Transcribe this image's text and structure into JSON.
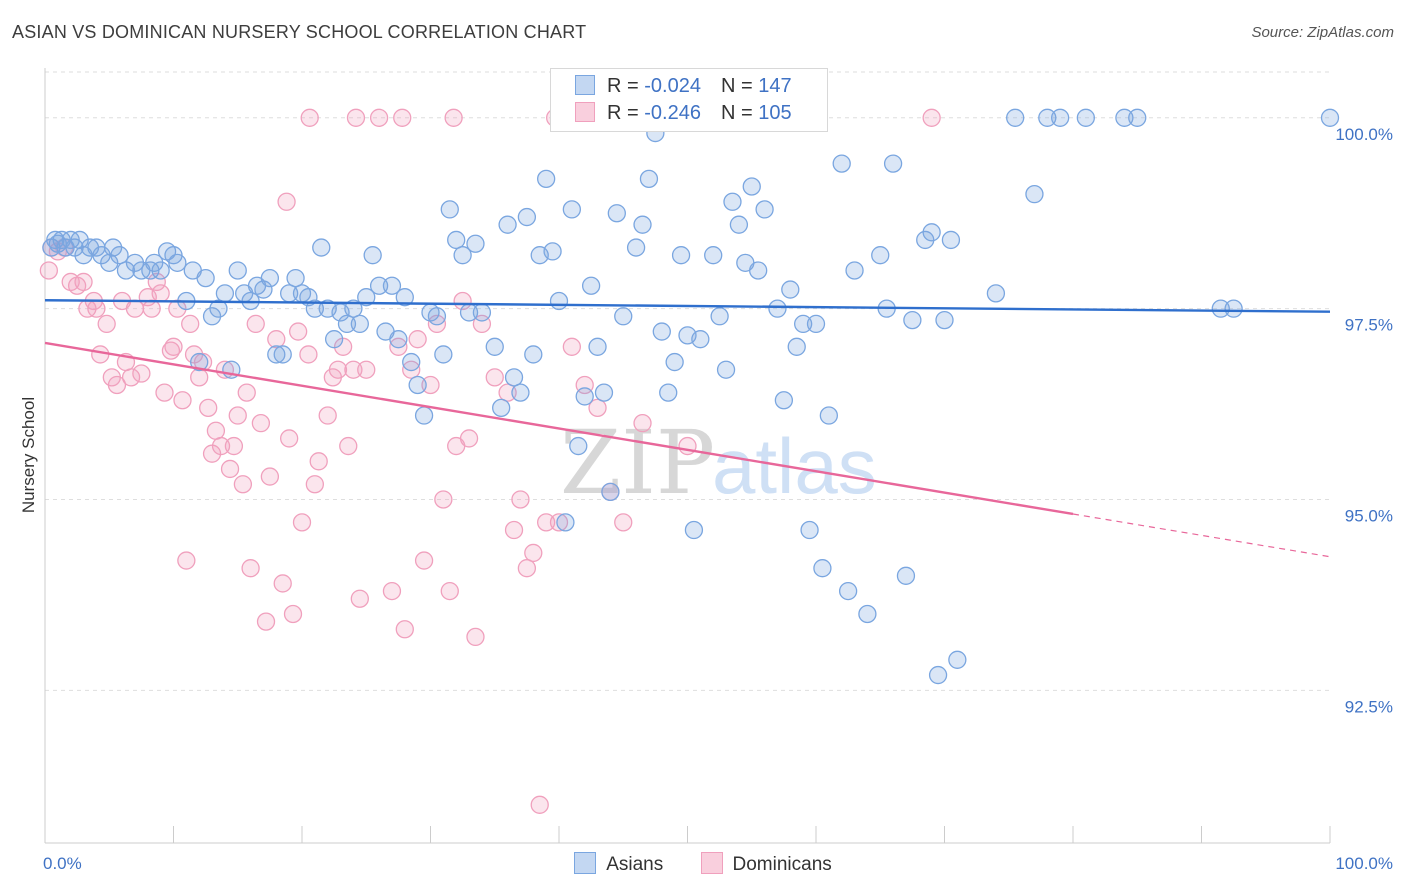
{
  "title": "ASIAN VS DOMINICAN NURSERY SCHOOL CORRELATION CHART",
  "source": "Source: ZipAtlas.com",
  "watermark": {
    "zip": "ZIP",
    "atlas": "atlas"
  },
  "legend": {
    "asian": {
      "r_label": "R = ",
      "r_value": "-0.024",
      "n_label": "N = ",
      "n_value": "147"
    },
    "dominican": {
      "r_label": "R = ",
      "r_value": "-0.246",
      "n_label": "N = ",
      "n_value": "105"
    }
  },
  "bottom_legend": {
    "asians": "Asians",
    "dominicans": "Dominicans"
  },
  "chart_data": {
    "type": "scatter",
    "title": "ASIAN VS DOMINICAN NURSERY SCHOOL CORRELATION CHART",
    "ylabel": "Nursery School",
    "xlabel": "",
    "xlim": [
      0,
      100
    ],
    "ylim": [
      90.5,
      100.6
    ],
    "x_tick_labels": {
      "left": "0.0%",
      "right": "100.0%"
    },
    "y_ticks": [
      {
        "value": 100.0,
        "label": "100.0%"
      },
      {
        "value": 97.5,
        "label": "97.5%"
      },
      {
        "value": 95.0,
        "label": "95.0%"
      },
      {
        "value": 92.5,
        "label": "92.5%"
      }
    ],
    "grid": true,
    "colors": {
      "asian": "#7aa6e0",
      "asian_line": "#2f6fcd",
      "dominican": "#f0a0bd",
      "dominican_line": "#e8679a"
    },
    "series": [
      {
        "name": "Asians",
        "trend": {
          "x0": 0,
          "y0": 97.61,
          "x1": 100,
          "y1": 97.46,
          "solid_until": 100
        },
        "points": [
          [
            0.5,
            98.3
          ],
          [
            0.8,
            98.4
          ],
          [
            1.0,
            98.35
          ],
          [
            1.3,
            98.4
          ],
          [
            1.6,
            98.3
          ],
          [
            2.0,
            98.4
          ],
          [
            2.3,
            98.3
          ],
          [
            2.7,
            98.4
          ],
          [
            3.0,
            98.2
          ],
          [
            3.5,
            98.3
          ],
          [
            4.0,
            98.3
          ],
          [
            4.4,
            98.2
          ],
          [
            5.0,
            98.1
          ],
          [
            5.3,
            98.3
          ],
          [
            5.8,
            98.2
          ],
          [
            6.3,
            98.0
          ],
          [
            7.0,
            98.1
          ],
          [
            7.5,
            98.0
          ],
          [
            8.2,
            98.0
          ],
          [
            8.5,
            98.1
          ],
          [
            9.0,
            98.0
          ],
          [
            9.5,
            98.25
          ],
          [
            10.0,
            98.2
          ],
          [
            10.3,
            98.1
          ],
          [
            11.0,
            97.6
          ],
          [
            11.5,
            98.0
          ],
          [
            12.0,
            96.8
          ],
          [
            12.5,
            97.9
          ],
          [
            13.0,
            97.4
          ],
          [
            13.5,
            97.5
          ],
          [
            14.0,
            97.7
          ],
          [
            14.5,
            96.7
          ],
          [
            15.0,
            98.0
          ],
          [
            15.5,
            97.7
          ],
          [
            16.0,
            97.6
          ],
          [
            16.5,
            97.8
          ],
          [
            17.0,
            97.75
          ],
          [
            17.5,
            97.9
          ],
          [
            18.0,
            96.9
          ],
          [
            18.5,
            96.9
          ],
          [
            19.0,
            97.7
          ],
          [
            19.5,
            97.9
          ],
          [
            20.0,
            97.7
          ],
          [
            20.5,
            97.65
          ],
          [
            21.0,
            97.5
          ],
          [
            21.5,
            98.3
          ],
          [
            22.0,
            97.5
          ],
          [
            22.5,
            97.1
          ],
          [
            23.0,
            97.45
          ],
          [
            23.5,
            97.3
          ],
          [
            24.0,
            97.5
          ],
          [
            24.5,
            97.3
          ],
          [
            25.0,
            97.65
          ],
          [
            25.5,
            98.2
          ],
          [
            26.0,
            97.8
          ],
          [
            26.5,
            97.2
          ],
          [
            27.0,
            97.8
          ],
          [
            27.5,
            97.1
          ],
          [
            28.0,
            97.65
          ],
          [
            28.5,
            96.8
          ],
          [
            29.0,
            96.5
          ],
          [
            29.5,
            96.1
          ],
          [
            30.0,
            97.45
          ],
          [
            30.5,
            97.4
          ],
          [
            31.0,
            96.9
          ],
          [
            31.5,
            98.8
          ],
          [
            32.0,
            98.4
          ],
          [
            32.5,
            98.2
          ],
          [
            33.0,
            97.45
          ],
          [
            33.5,
            98.35
          ],
          [
            34.0,
            97.45
          ],
          [
            35.0,
            97.0
          ],
          [
            35.5,
            96.2
          ],
          [
            36.0,
            98.6
          ],
          [
            36.5,
            96.6
          ],
          [
            37.0,
            96.4
          ],
          [
            37.5,
            98.7
          ],
          [
            38.0,
            96.9
          ],
          [
            38.5,
            98.2
          ],
          [
            39.0,
            99.2
          ],
          [
            39.5,
            98.25
          ],
          [
            40.0,
            97.6
          ],
          [
            40.5,
            94.7
          ],
          [
            41.0,
            98.8
          ],
          [
            41.5,
            95.7
          ],
          [
            42.0,
            96.35
          ],
          [
            42.5,
            97.8
          ],
          [
            43.0,
            97.0
          ],
          [
            43.5,
            96.4
          ],
          [
            44.0,
            95.1
          ],
          [
            44.5,
            98.75
          ],
          [
            45.0,
            97.4
          ],
          [
            46.0,
            98.3
          ],
          [
            46.5,
            98.6
          ],
          [
            47.0,
            99.2
          ],
          [
            47.5,
            99.8
          ],
          [
            48.0,
            97.2
          ],
          [
            48.5,
            96.4
          ],
          [
            49.0,
            96.8
          ],
          [
            49.5,
            98.2
          ],
          [
            50.0,
            97.15
          ],
          [
            50.5,
            94.6
          ],
          [
            51.0,
            97.1
          ],
          [
            52.0,
            98.2
          ],
          [
            52.5,
            97.4
          ],
          [
            53.0,
            96.7
          ],
          [
            53.5,
            98.9
          ],
          [
            54.0,
            98.6
          ],
          [
            54.5,
            98.1
          ],
          [
            55.0,
            99.1
          ],
          [
            55.5,
            98.0
          ],
          [
            56.0,
            98.8
          ],
          [
            57.0,
            97.5
          ],
          [
            57.5,
            96.3
          ],
          [
            58.0,
            97.75
          ],
          [
            58.5,
            97.0
          ],
          [
            59.0,
            97.3
          ],
          [
            59.5,
            94.6
          ],
          [
            60.0,
            97.3
          ],
          [
            60.5,
            94.1
          ],
          [
            61.0,
            96.1
          ],
          [
            62.0,
            99.4
          ],
          [
            62.5,
            93.8
          ],
          [
            63.0,
            98.0
          ],
          [
            64.0,
            93.5
          ],
          [
            65.0,
            98.2
          ],
          [
            65.5,
            97.5
          ],
          [
            66.0,
            99.4
          ],
          [
            67.0,
            94.0
          ],
          [
            67.5,
            97.35
          ],
          [
            68.5,
            98.4
          ],
          [
            69.0,
            98.5
          ],
          [
            69.5,
            92.7
          ],
          [
            70.0,
            97.35
          ],
          [
            70.5,
            98.4
          ],
          [
            71.0,
            92.9
          ],
          [
            74.0,
            97.7
          ],
          [
            77.0,
            99.0
          ],
          [
            75.5,
            100.0
          ],
          [
            78.0,
            100.0
          ],
          [
            79.0,
            100.0
          ],
          [
            81.0,
            100.0
          ],
          [
            84.0,
            100.0
          ],
          [
            85.0,
            100.0
          ],
          [
            100.0,
            100.0
          ],
          [
            91.5,
            97.5
          ],
          [
            92.5,
            97.5
          ]
        ]
      },
      {
        "name": "Dominicans",
        "trend": {
          "x0": 0,
          "y0": 97.05,
          "x1": 100,
          "y1": 94.25,
          "solid_until": 80
        },
        "points": [
          [
            0.3,
            98.0
          ],
          [
            0.5,
            98.3
          ],
          [
            1.0,
            98.25
          ],
          [
            1.5,
            98.3
          ],
          [
            2.0,
            97.85
          ],
          [
            2.5,
            97.8
          ],
          [
            3.0,
            97.85
          ],
          [
            3.3,
            97.5
          ],
          [
            3.8,
            97.6
          ],
          [
            4.0,
            97.5
          ],
          [
            4.3,
            96.9
          ],
          [
            4.8,
            97.3
          ],
          [
            5.2,
            96.6
          ],
          [
            5.6,
            96.5
          ],
          [
            6.0,
            97.6
          ],
          [
            6.3,
            96.8
          ],
          [
            6.7,
            96.6
          ],
          [
            7.0,
            97.5
          ],
          [
            7.5,
            96.65
          ],
          [
            8.0,
            97.65
          ],
          [
            8.3,
            97.5
          ],
          [
            8.7,
            97.85
          ],
          [
            9.0,
            97.7
          ],
          [
            9.3,
            96.4
          ],
          [
            9.8,
            96.95
          ],
          [
            10.0,
            97.0
          ],
          [
            10.3,
            97.5
          ],
          [
            10.7,
            96.3
          ],
          [
            11.0,
            94.2
          ],
          [
            11.3,
            97.3
          ],
          [
            11.6,
            96.9
          ],
          [
            12.0,
            96.6
          ],
          [
            12.3,
            96.8
          ],
          [
            12.7,
            96.2
          ],
          [
            13.0,
            95.6
          ],
          [
            13.3,
            95.9
          ],
          [
            13.7,
            95.7
          ],
          [
            14.0,
            96.7
          ],
          [
            14.4,
            95.4
          ],
          [
            14.7,
            95.7
          ],
          [
            15.0,
            96.1
          ],
          [
            15.4,
            95.2
          ],
          [
            15.7,
            96.4
          ],
          [
            16.0,
            94.1
          ],
          [
            16.4,
            97.3
          ],
          [
            16.8,
            96.0
          ],
          [
            17.2,
            93.4
          ],
          [
            17.5,
            95.3
          ],
          [
            18.0,
            97.1
          ],
          [
            18.5,
            93.9
          ],
          [
            18.8,
            98.9
          ],
          [
            19.0,
            95.8
          ],
          [
            19.3,
            93.5
          ],
          [
            19.7,
            97.2
          ],
          [
            20.0,
            94.7
          ],
          [
            20.5,
            96.9
          ],
          [
            21.0,
            95.2
          ],
          [
            21.3,
            95.5
          ],
          [
            22.0,
            96.1
          ],
          [
            22.4,
            96.6
          ],
          [
            22.8,
            96.7
          ],
          [
            23.2,
            97.0
          ],
          [
            23.6,
            95.7
          ],
          [
            24.0,
            96.7
          ],
          [
            24.5,
            93.7
          ],
          [
            25.0,
            96.7
          ],
          [
            26.0,
            100.0
          ],
          [
            27.0,
            93.8
          ],
          [
            27.5,
            97.0
          ],
          [
            28.0,
            93.3
          ],
          [
            28.5,
            96.7
          ],
          [
            29.0,
            97.1
          ],
          [
            29.5,
            94.2
          ],
          [
            30.0,
            96.5
          ],
          [
            30.5,
            97.3
          ],
          [
            31.0,
            95.0
          ],
          [
            31.5,
            93.8
          ],
          [
            32.0,
            95.7
          ],
          [
            32.5,
            97.6
          ],
          [
            33.0,
            95.8
          ],
          [
            33.5,
            93.2
          ],
          [
            34.0,
            97.3
          ],
          [
            35.0,
            96.6
          ],
          [
            36.0,
            96.4
          ],
          [
            36.5,
            94.6
          ],
          [
            37.0,
            95.0
          ],
          [
            37.5,
            94.1
          ],
          [
            38.0,
            94.3
          ],
          [
            38.5,
            91.0
          ],
          [
            39.0,
            94.7
          ],
          [
            40.0,
            94.7
          ],
          [
            41.0,
            97.0
          ],
          [
            42.0,
            96.5
          ],
          [
            43.0,
            96.2
          ],
          [
            44.0,
            95.1
          ],
          [
            45.0,
            94.7
          ],
          [
            46.5,
            96.0
          ],
          [
            47.5,
            100.0
          ],
          [
            50.0,
            95.7
          ],
          [
            20.6,
            100.0
          ],
          [
            24.2,
            100.0
          ],
          [
            27.8,
            100.0
          ],
          [
            31.8,
            100.0
          ],
          [
            39.7,
            100.0
          ],
          [
            69.0,
            100.0
          ]
        ]
      }
    ]
  }
}
